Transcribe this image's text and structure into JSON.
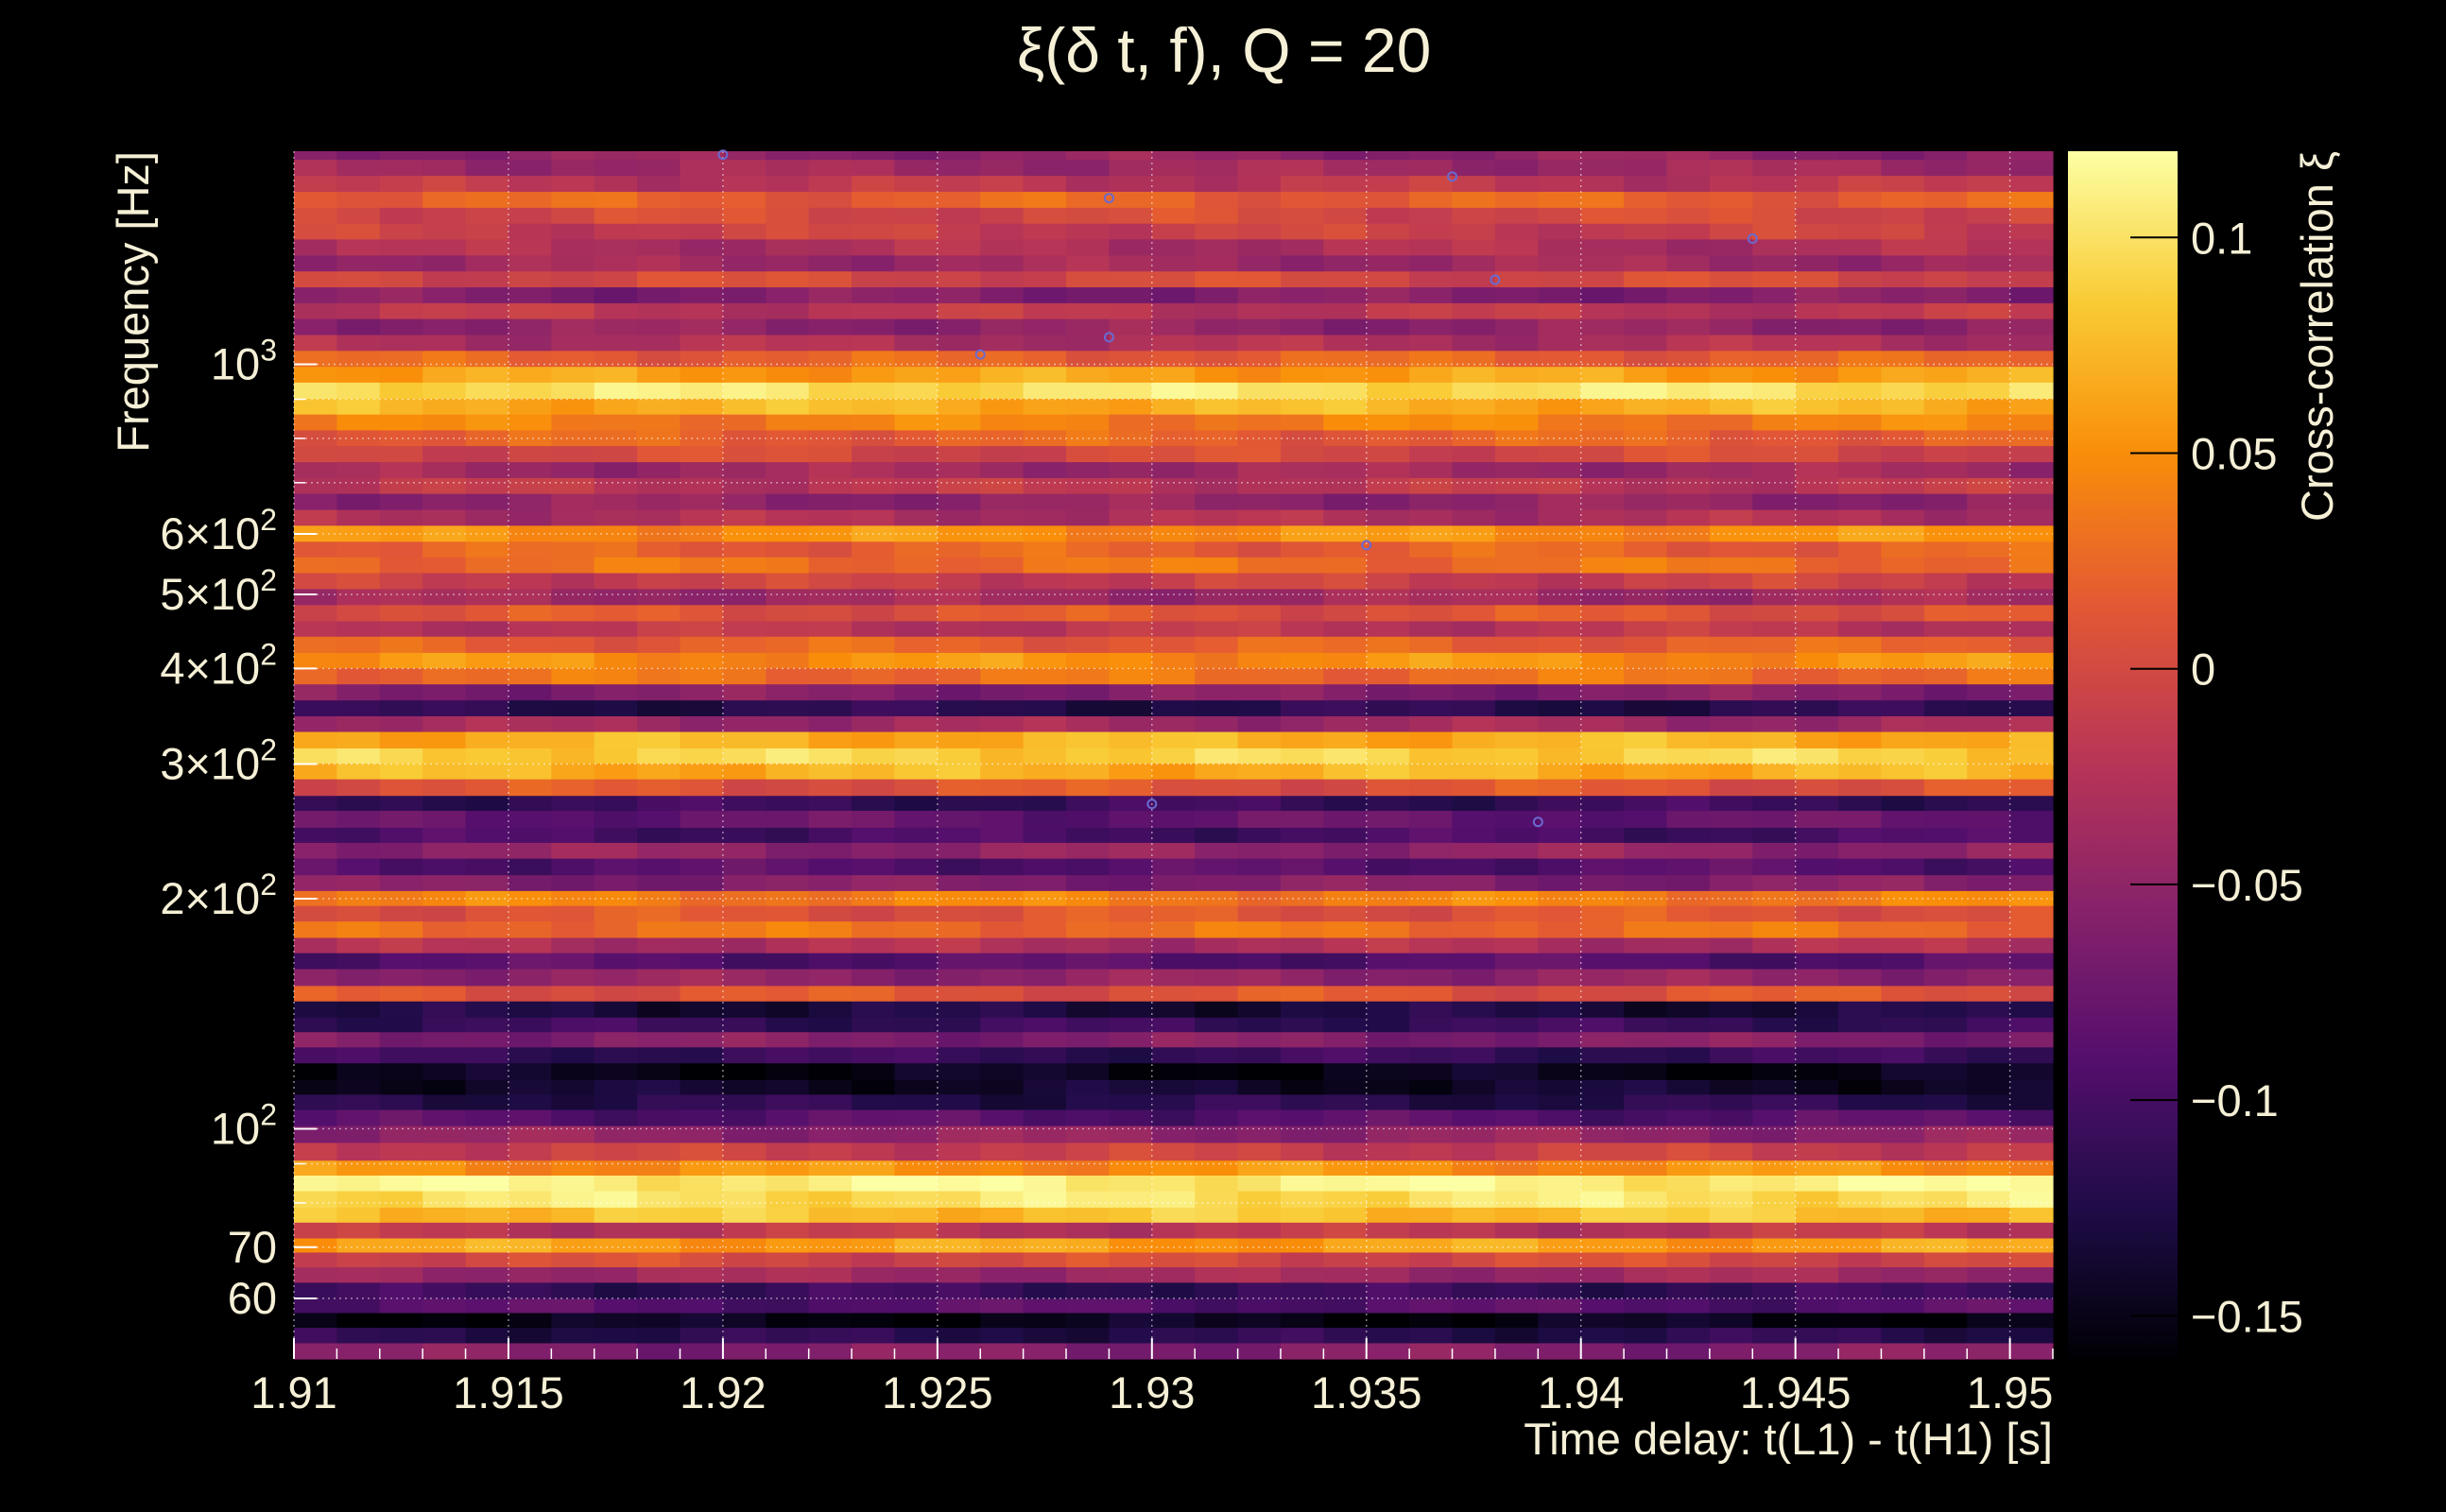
{
  "chart_data": {
    "type": "heatmap",
    "title": "ξ(δ t, f), Q = 20",
    "xlabel": "Time delay: t(L1) - t(H1) [s]",
    "ylabel": "Frequency [Hz]",
    "colorbar_label": "Cross-correlation ξ",
    "xlim": [
      1.91,
      1.951
    ],
    "ylim": [
      50,
      1900
    ],
    "yscale": "log",
    "x_ticks": [
      {
        "value": 1.91,
        "label": "1.91"
      },
      {
        "value": 1.915,
        "label": "1.915"
      },
      {
        "value": 1.92,
        "label": "1.92"
      },
      {
        "value": 1.925,
        "label": "1.925"
      },
      {
        "value": 1.93,
        "label": "1.93"
      },
      {
        "value": 1.935,
        "label": "1.935"
      },
      {
        "value": 1.94,
        "label": "1.94"
      },
      {
        "value": 1.945,
        "label": "1.945"
      },
      {
        "value": 1.95,
        "label": "1.95"
      }
    ],
    "y_ticks": [
      {
        "value": 60,
        "mant": "60",
        "exp": ""
      },
      {
        "value": 70,
        "mant": "70",
        "exp": ""
      },
      {
        "value": 100,
        "mant": "10",
        "exp": "2"
      },
      {
        "value": 200,
        "mant": "2×10",
        "exp": "2"
      },
      {
        "value": 300,
        "mant": "3×10",
        "exp": "2"
      },
      {
        "value": 400,
        "mant": "4×10",
        "exp": "2"
      },
      {
        "value": 500,
        "mant": "5×10",
        "exp": "2"
      },
      {
        "value": 600,
        "mant": "6×10",
        "exp": "2"
      },
      {
        "value": 1000,
        "mant": "10",
        "exp": "3"
      }
    ],
    "colorbar": {
      "range": [
        -0.16,
        0.12
      ],
      "ticks": [
        {
          "value": 0.1,
          "label": "0.1"
        },
        {
          "value": 0.05,
          "label": "0.05"
        },
        {
          "value": 0,
          "label": "0"
        },
        {
          "value": -0.05,
          "label": "−0.05"
        },
        {
          "value": -0.1,
          "label": "−0.1"
        },
        {
          "value": -0.15,
          "label": "−0.15"
        }
      ]
    },
    "grid": true,
    "colormap": [
      "#000004",
      "#1f0c48",
      "#550f6d",
      "#88226a",
      "#ba3655",
      "#e35933",
      "#f98e09",
      "#f9cb35",
      "#fcffa4"
    ],
    "frequency_bands": [
      {
        "f_min": 50,
        "f_max": 52.5,
        "value": -0.06
      },
      {
        "f_min": 52.5,
        "f_max": 55,
        "value": -0.12
      },
      {
        "f_min": 55,
        "f_max": 57.5,
        "value": -0.15
      },
      {
        "f_min": 57.5,
        "f_max": 60,
        "value": -0.09
      },
      {
        "f_min": 60,
        "f_max": 63,
        "value": -0.11
      },
      {
        "f_min": 63,
        "f_max": 66,
        "value": -0.04
      },
      {
        "f_min": 66,
        "f_max": 69,
        "value": 0.0
      },
      {
        "f_min": 69,
        "f_max": 72,
        "value": 0.06
      },
      {
        "f_min": 72,
        "f_max": 75.5,
        "value": -0.02
      },
      {
        "f_min": 75.5,
        "f_max": 79,
        "value": 0.08
      },
      {
        "f_min": 79,
        "f_max": 83,
        "value": 0.1
      },
      {
        "f_min": 83,
        "f_max": 87,
        "value": 0.11
      },
      {
        "f_min": 87,
        "f_max": 91,
        "value": 0.05
      },
      {
        "f_min": 91,
        "f_max": 96,
        "value": -0.01
      },
      {
        "f_min": 96,
        "f_max": 101,
        "value": -0.05
      },
      {
        "f_min": 101,
        "f_max": 106,
        "value": -0.09
      },
      {
        "f_min": 106,
        "f_max": 111,
        "value": -0.12
      },
      {
        "f_min": 111,
        "f_max": 116,
        "value": -0.14
      },
      {
        "f_min": 116,
        "f_max": 122,
        "value": -0.15
      },
      {
        "f_min": 122,
        "f_max": 128,
        "value": -0.11
      },
      {
        "f_min": 128,
        "f_max": 134,
        "value": -0.06
      },
      {
        "f_min": 134,
        "f_max": 140,
        "value": -0.11
      },
      {
        "f_min": 140,
        "f_max": 147,
        "value": -0.13
      },
      {
        "f_min": 147,
        "f_max": 154,
        "value": 0.01
      },
      {
        "f_min": 154,
        "f_max": 162,
        "value": -0.05
      },
      {
        "f_min": 162,
        "f_max": 170,
        "value": -0.09
      },
      {
        "f_min": 170,
        "f_max": 178,
        "value": -0.03
      },
      {
        "f_min": 178,
        "f_max": 187,
        "value": 0.03
      },
      {
        "f_min": 187,
        "f_max": 196,
        "value": 0.01
      },
      {
        "f_min": 196,
        "f_max": 205,
        "value": 0.04
      },
      {
        "f_min": 205,
        "f_max": 215,
        "value": -0.06
      },
      {
        "f_min": 215,
        "f_max": 226,
        "value": -0.09
      },
      {
        "f_min": 226,
        "f_max": 237,
        "value": -0.05
      },
      {
        "f_min": 237,
        "f_max": 248,
        "value": -0.1
      },
      {
        "f_min": 248,
        "f_max": 261,
        "value": -0.08
      },
      {
        "f_min": 261,
        "f_max": 273,
        "value": -0.11
      },
      {
        "f_min": 273,
        "f_max": 287,
        "value": 0.01
      },
      {
        "f_min": 287,
        "f_max": 301,
        "value": 0.07
      },
      {
        "f_min": 301,
        "f_max": 315,
        "value": 0.09
      },
      {
        "f_min": 315,
        "f_max": 331,
        "value": 0.07
      },
      {
        "f_min": 331,
        "f_max": 347,
        "value": -0.04
      },
      {
        "f_min": 347,
        "f_max": 364,
        "value": -0.12
      },
      {
        "f_min": 364,
        "f_max": 382,
        "value": -0.06
      },
      {
        "f_min": 382,
        "f_max": 401,
        "value": 0.03
      },
      {
        "f_min": 401,
        "f_max": 420,
        "value": 0.05
      },
      {
        "f_min": 420,
        "f_max": 441,
        "value": 0.02
      },
      {
        "f_min": 441,
        "f_max": 462,
        "value": -0.02
      },
      {
        "f_min": 462,
        "f_max": 485,
        "value": 0.01
      },
      {
        "f_min": 485,
        "f_max": 509,
        "value": -0.04
      },
      {
        "f_min": 509,
        "f_max": 534,
        "value": -0.01
      },
      {
        "f_min": 534,
        "f_max": 560,
        "value": 0.03
      },
      {
        "f_min": 560,
        "f_max": 587,
        "value": 0.02
      },
      {
        "f_min": 587,
        "f_max": 616,
        "value": 0.05
      },
      {
        "f_min": 616,
        "f_max": 646,
        "value": -0.03
      },
      {
        "f_min": 646,
        "f_max": 678,
        "value": -0.05
      },
      {
        "f_min": 678,
        "f_max": 711,
        "value": -0.02
      },
      {
        "f_min": 711,
        "f_max": 746,
        "value": -0.04
      },
      {
        "f_min": 746,
        "f_max": 783,
        "value": 0.0
      },
      {
        "f_min": 783,
        "f_max": 821,
        "value": 0.02
      },
      {
        "f_min": 821,
        "f_max": 861,
        "value": 0.04
      },
      {
        "f_min": 861,
        "f_max": 903,
        "value": 0.07
      },
      {
        "f_min": 903,
        "f_max": 948,
        "value": 0.1
      },
      {
        "f_min": 948,
        "f_max": 994,
        "value": 0.06
      },
      {
        "f_min": 994,
        "f_max": 1043,
        "value": 0.02
      },
      {
        "f_min": 1043,
        "f_max": 1094,
        "value": -0.03
      },
      {
        "f_min": 1094,
        "f_max": 1148,
        "value": -0.05
      },
      {
        "f_min": 1148,
        "f_max": 1204,
        "value": -0.02
      },
      {
        "f_min": 1204,
        "f_max": 1263,
        "value": -0.06
      },
      {
        "f_min": 1263,
        "f_max": 1325,
        "value": 0.0
      },
      {
        "f_min": 1325,
        "f_max": 1390,
        "value": -0.04
      },
      {
        "f_min": 1390,
        "f_max": 1459,
        "value": -0.03
      },
      {
        "f_min": 1459,
        "f_max": 1530,
        "value": -0.01
      },
      {
        "f_min": 1530,
        "f_max": 1605,
        "value": 0.0
      },
      {
        "f_min": 1605,
        "f_max": 1684,
        "value": 0.02
      },
      {
        "f_min": 1684,
        "f_max": 1767,
        "value": -0.02
      },
      {
        "f_min": 1767,
        "f_max": 1854,
        "value": -0.04
      },
      {
        "f_min": 1854,
        "f_max": 1900,
        "value": -0.05
      }
    ],
    "peak_markers": [
      {
        "x": 1.92,
        "y": 1880
      },
      {
        "x": 1.929,
        "y": 1650
      },
      {
        "x": 1.937,
        "y": 1760
      },
      {
        "x": 1.944,
        "y": 1460
      },
      {
        "x": 1.938,
        "y": 1290
      },
      {
        "x": 1.926,
        "y": 1030
      },
      {
        "x": 1.929,
        "y": 1085
      },
      {
        "x": 1.935,
        "y": 580
      },
      {
        "x": 1.93,
        "y": 266
      },
      {
        "x": 1.939,
        "y": 252
      }
    ]
  }
}
